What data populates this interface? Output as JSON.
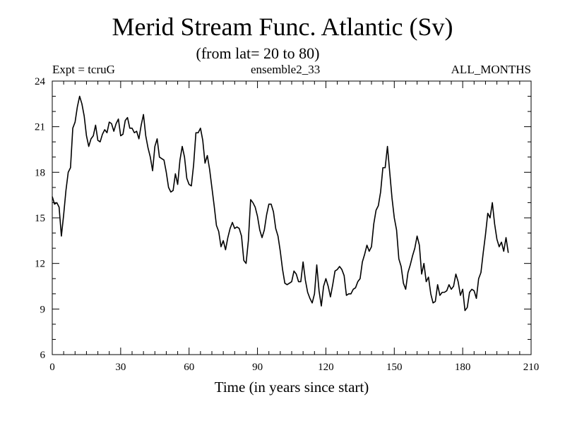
{
  "chart_data": {
    "type": "line",
    "title": "Merid Stream Func. Atlantic (Sv)",
    "subtitle": "(from lat= 20 to 80)",
    "header_left": "Expt = tcruG",
    "header_center": "ensemble2_33",
    "header_right": "ALL_MONTHS",
    "xlabel": "Time (in years since start)",
    "ylabel": "",
    "xlim": [
      0,
      210
    ],
    "ylim": [
      6,
      24
    ],
    "xticks": [
      0,
      30,
      60,
      90,
      120,
      150,
      180,
      210
    ],
    "yticks": [
      6,
      9,
      12,
      15,
      18,
      21,
      24
    ],
    "x_minor_step": 5,
    "y_minor_step": 1,
    "series": [
      {
        "name": "ensemble2_33",
        "color": "#000000",
        "points": [
          [
            0,
            16.4
          ],
          [
            1,
            15.9
          ],
          [
            2,
            16.0
          ],
          [
            3,
            15.7
          ],
          [
            4,
            13.8
          ],
          [
            5,
            15.2
          ],
          [
            6,
            16.8
          ],
          [
            7,
            18.0
          ],
          [
            8,
            18.3
          ],
          [
            9,
            20.9
          ],
          [
            10,
            21.3
          ],
          [
            11,
            22.3
          ],
          [
            12,
            23.0
          ],
          [
            13,
            22.5
          ],
          [
            14,
            21.7
          ],
          [
            15,
            20.4
          ],
          [
            16,
            19.7
          ],
          [
            17,
            20.2
          ],
          [
            18,
            20.4
          ],
          [
            19,
            21.1
          ],
          [
            20,
            20.1
          ],
          [
            21,
            20.0
          ],
          [
            22,
            20.5
          ],
          [
            23,
            20.8
          ],
          [
            24,
            20.6
          ],
          [
            25,
            21.3
          ],
          [
            26,
            21.2
          ],
          [
            27,
            20.7
          ],
          [
            28,
            21.2
          ],
          [
            29,
            21.5
          ],
          [
            30,
            20.4
          ],
          [
            31,
            20.5
          ],
          [
            32,
            21.4
          ],
          [
            33,
            21.6
          ],
          [
            34,
            20.9
          ],
          [
            35,
            20.9
          ],
          [
            36,
            20.6
          ],
          [
            37,
            20.7
          ],
          [
            38,
            20.2
          ],
          [
            39,
            21.1
          ],
          [
            40,
            21.8
          ],
          [
            41,
            20.4
          ],
          [
            42,
            19.6
          ],
          [
            43,
            19.0
          ],
          [
            44,
            18.1
          ],
          [
            45,
            19.7
          ],
          [
            46,
            20.2
          ],
          [
            47,
            19.0
          ],
          [
            48,
            18.9
          ],
          [
            49,
            18.8
          ],
          [
            50,
            18.0
          ],
          [
            51,
            17.0
          ],
          [
            52,
            16.7
          ],
          [
            53,
            16.8
          ],
          [
            54,
            17.9
          ],
          [
            55,
            17.2
          ],
          [
            56,
            18.8
          ],
          [
            57,
            19.7
          ],
          [
            58,
            19.0
          ],
          [
            59,
            17.6
          ],
          [
            60,
            17.2
          ],
          [
            61,
            17.1
          ],
          [
            62,
            18.5
          ],
          [
            63,
            20.6
          ],
          [
            64,
            20.6
          ],
          [
            65,
            20.9
          ],
          [
            66,
            20.1
          ],
          [
            67,
            18.6
          ],
          [
            68,
            19.1
          ],
          [
            69,
            18.2
          ],
          [
            70,
            17.0
          ],
          [
            71,
            15.8
          ],
          [
            72,
            14.5
          ],
          [
            73,
            14.1
          ],
          [
            74,
            13.1
          ],
          [
            75,
            13.5
          ],
          [
            76,
            12.9
          ],
          [
            77,
            13.7
          ],
          [
            78,
            14.3
          ],
          [
            79,
            14.7
          ],
          [
            80,
            14.3
          ],
          [
            81,
            14.4
          ],
          [
            82,
            14.3
          ],
          [
            83,
            13.8
          ],
          [
            84,
            12.2
          ],
          [
            85,
            12.0
          ],
          [
            86,
            13.5
          ],
          [
            87,
            16.2
          ],
          [
            88,
            16.0
          ],
          [
            89,
            15.7
          ],
          [
            90,
            15.1
          ],
          [
            91,
            14.2
          ],
          [
            92,
            13.7
          ],
          [
            93,
            14.2
          ],
          [
            94,
            15.2
          ],
          [
            95,
            15.9
          ],
          [
            96,
            15.9
          ],
          [
            97,
            15.4
          ],
          [
            98,
            14.3
          ],
          [
            99,
            13.8
          ],
          [
            100,
            12.8
          ],
          [
            101,
            11.6
          ],
          [
            102,
            10.7
          ],
          [
            103,
            10.6
          ],
          [
            104,
            10.7
          ],
          [
            105,
            10.8
          ],
          [
            106,
            11.5
          ],
          [
            107,
            11.3
          ],
          [
            108,
            10.8
          ],
          [
            109,
            10.8
          ],
          [
            110,
            12.1
          ],
          [
            111,
            10.9
          ],
          [
            112,
            10.1
          ],
          [
            113,
            9.7
          ],
          [
            114,
            9.4
          ],
          [
            115,
            10.0
          ],
          [
            116,
            11.9
          ],
          [
            117,
            10.2
          ],
          [
            118,
            9.2
          ],
          [
            119,
            10.5
          ],
          [
            120,
            11.0
          ],
          [
            121,
            10.5
          ],
          [
            122,
            9.8
          ],
          [
            123,
            10.6
          ],
          [
            124,
            11.5
          ],
          [
            125,
            11.6
          ],
          [
            126,
            11.8
          ],
          [
            127,
            11.6
          ],
          [
            128,
            11.2
          ],
          [
            129,
            9.9
          ],
          [
            130,
            10.0
          ],
          [
            131,
            10.0
          ],
          [
            132,
            10.3
          ],
          [
            133,
            10.4
          ],
          [
            134,
            10.8
          ],
          [
            135,
            11.0
          ],
          [
            136,
            12.1
          ],
          [
            137,
            12.6
          ],
          [
            138,
            13.2
          ],
          [
            139,
            12.8
          ],
          [
            140,
            13.1
          ],
          [
            141,
            14.6
          ],
          [
            142,
            15.5
          ],
          [
            143,
            15.8
          ],
          [
            144,
            16.7
          ],
          [
            145,
            18.3
          ],
          [
            146,
            18.3
          ],
          [
            147,
            19.7
          ],
          [
            148,
            18.0
          ],
          [
            149,
            16.3
          ],
          [
            150,
            15.0
          ],
          [
            151,
            14.2
          ],
          [
            152,
            12.3
          ],
          [
            153,
            11.8
          ],
          [
            154,
            10.7
          ],
          [
            155,
            10.3
          ],
          [
            156,
            11.4
          ],
          [
            157,
            11.9
          ],
          [
            158,
            12.5
          ],
          [
            159,
            13.0
          ],
          [
            160,
            13.8
          ],
          [
            161,
            13.2
          ],
          [
            162,
            11.3
          ],
          [
            163,
            12.0
          ],
          [
            164,
            10.8
          ],
          [
            165,
            11.1
          ],
          [
            166,
            10.0
          ],
          [
            167,
            9.4
          ],
          [
            168,
            9.5
          ],
          [
            169,
            10.6
          ],
          [
            170,
            9.9
          ],
          [
            171,
            10.1
          ],
          [
            172,
            10.1
          ],
          [
            173,
            10.2
          ],
          [
            174,
            10.6
          ],
          [
            175,
            10.3
          ],
          [
            176,
            10.5
          ],
          [
            177,
            11.3
          ],
          [
            178,
            10.8
          ],
          [
            179,
            9.9
          ],
          [
            180,
            10.3
          ],
          [
            181,
            8.9
          ],
          [
            182,
            9.1
          ],
          [
            183,
            10.1
          ],
          [
            184,
            10.3
          ],
          [
            185,
            10.2
          ],
          [
            186,
            9.7
          ],
          [
            187,
            11.0
          ],
          [
            188,
            11.4
          ],
          [
            189,
            12.7
          ],
          [
            190,
            13.9
          ],
          [
            191,
            15.3
          ],
          [
            192,
            15.0
          ],
          [
            193,
            16.0
          ],
          [
            194,
            14.6
          ],
          [
            195,
            13.6
          ],
          [
            196,
            13.1
          ],
          [
            197,
            13.4
          ],
          [
            198,
            12.8
          ],
          [
            199,
            13.7
          ],
          [
            200,
            12.7
          ]
        ]
      }
    ]
  }
}
